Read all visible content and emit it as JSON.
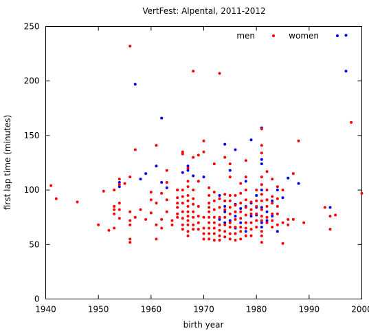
{
  "chart_data": {
    "type": "scatter",
    "title": "VertFest: Alpental, 2011-2012",
    "xlabel": "birth year",
    "ylabel": "first lap time (minutes)",
    "xlim": [
      1940,
      2000
    ],
    "ylim": [
      0,
      250
    ],
    "xticks": [
      1940,
      1950,
      1960,
      1970,
      1980,
      1990,
      2000
    ],
    "yticks": [
      0,
      50,
      100,
      150,
      200,
      250
    ],
    "grid": false,
    "legend_position": "top-right",
    "series": [
      {
        "name": "men",
        "color": "#0000ff",
        "points": [
          [
            1954,
            103
          ],
          [
            1954,
            107
          ],
          [
            1957,
            197
          ],
          [
            1958,
            110
          ],
          [
            1959,
            115
          ],
          [
            1961,
            122
          ],
          [
            1962,
            166
          ],
          [
            1962,
            107
          ],
          [
            1963,
            102
          ],
          [
            1965,
            100
          ],
          [
            1966,
            116
          ],
          [
            1967,
            122
          ],
          [
            1967,
            118
          ],
          [
            1968,
            113
          ],
          [
            1969,
            108
          ],
          [
            1970,
            112
          ],
          [
            1973,
            95
          ],
          [
            1973,
            92
          ],
          [
            1973,
            73
          ],
          [
            1974,
            142
          ],
          [
            1974,
            90
          ],
          [
            1974,
            85
          ],
          [
            1974,
            80
          ],
          [
            1974,
            70
          ],
          [
            1975,
            118
          ],
          [
            1975,
            72
          ],
          [
            1976,
            137
          ],
          [
            1976,
            87
          ],
          [
            1976,
            80
          ],
          [
            1976,
            76
          ],
          [
            1976,
            65
          ],
          [
            1976,
            60
          ],
          [
            1977,
            83
          ],
          [
            1977,
            70
          ],
          [
            1978,
            108
          ],
          [
            1978,
            85
          ],
          [
            1978,
            70
          ],
          [
            1978,
            62
          ],
          [
            1979,
            146
          ],
          [
            1979,
            88
          ],
          [
            1979,
            76
          ],
          [
            1980,
            95
          ],
          [
            1980,
            84
          ],
          [
            1980,
            77
          ],
          [
            1981,
            157
          ],
          [
            1981,
            128
          ],
          [
            1981,
            124
          ],
          [
            1981,
            100
          ],
          [
            1981,
            84
          ],
          [
            1981,
            70
          ],
          [
            1981,
            66
          ],
          [
            1982,
            91
          ],
          [
            1982,
            80
          ],
          [
            1982,
            72
          ],
          [
            1983,
            90
          ],
          [
            1983,
            76
          ],
          [
            1984,
            100
          ],
          [
            1984,
            62
          ],
          [
            1985,
            93
          ],
          [
            1986,
            111
          ],
          [
            1988,
            106
          ],
          [
            1994,
            84
          ],
          [
            1997,
            209
          ],
          [
            1997,
            242
          ]
        ]
      },
      {
        "name": "women",
        "color": "#ff0000",
        "points": [
          [
            1941,
            104
          ],
          [
            1942,
            92
          ],
          [
            1946,
            89
          ],
          [
            1950,
            68
          ],
          [
            1951,
            99
          ],
          [
            1952,
            63
          ],
          [
            1953,
            65
          ],
          [
            1953,
            78
          ],
          [
            1953,
            82
          ],
          [
            1953,
            85
          ],
          [
            1953,
            100
          ],
          [
            1954,
            110
          ],
          [
            1954,
            105
          ],
          [
            1954,
            88
          ],
          [
            1954,
            82
          ],
          [
            1954,
            74
          ],
          [
            1955,
            106
          ],
          [
            1956,
            232
          ],
          [
            1956,
            112
          ],
          [
            1956,
            80
          ],
          [
            1956,
            72
          ],
          [
            1956,
            68
          ],
          [
            1956,
            55
          ],
          [
            1956,
            52
          ],
          [
            1957,
            137
          ],
          [
            1957,
            75
          ],
          [
            1958,
            82
          ],
          [
            1959,
            73
          ],
          [
            1960,
            98
          ],
          [
            1960,
            91
          ],
          [
            1960,
            79
          ],
          [
            1961,
            141
          ],
          [
            1961,
            88
          ],
          [
            1961,
            68
          ],
          [
            1961,
            55
          ],
          [
            1962,
            97
          ],
          [
            1962,
            73
          ],
          [
            1962,
            65
          ],
          [
            1963,
            118
          ],
          [
            1963,
            107
          ],
          [
            1963,
            91
          ],
          [
            1963,
            80
          ],
          [
            1964,
            72
          ],
          [
            1964,
            68
          ],
          [
            1965,
            100
          ],
          [
            1965,
            93
          ],
          [
            1965,
            88
          ],
          [
            1965,
            84
          ],
          [
            1965,
            78
          ],
          [
            1965,
            75
          ],
          [
            1966,
            135
          ],
          [
            1966,
            133
          ],
          [
            1966,
            100
          ],
          [
            1966,
            94
          ],
          [
            1966,
            88
          ],
          [
            1966,
            80
          ],
          [
            1966,
            74
          ],
          [
            1966,
            68
          ],
          [
            1966,
            64
          ],
          [
            1967,
            120
          ],
          [
            1967,
            108
          ],
          [
            1967,
            103
          ],
          [
            1967,
            95
          ],
          [
            1967,
            90
          ],
          [
            1967,
            85
          ],
          [
            1967,
            80
          ],
          [
            1967,
            76
          ],
          [
            1967,
            72
          ],
          [
            1967,
            68
          ],
          [
            1967,
            62
          ],
          [
            1967,
            58
          ],
          [
            1968,
            209
          ],
          [
            1968,
            130
          ],
          [
            1968,
            100
          ],
          [
            1968,
            92
          ],
          [
            1968,
            87
          ],
          [
            1968,
            80
          ],
          [
            1968,
            75
          ],
          [
            1968,
            68
          ],
          [
            1968,
            64
          ],
          [
            1969,
            132
          ],
          [
            1969,
            108
          ],
          [
            1969,
            85
          ],
          [
            1969,
            76
          ],
          [
            1969,
            70
          ],
          [
            1969,
            64
          ],
          [
            1970,
            145
          ],
          [
            1970,
            135
          ],
          [
            1970,
            75
          ],
          [
            1970,
            65
          ],
          [
            1970,
            60
          ],
          [
            1970,
            55
          ],
          [
            1971,
            102
          ],
          [
            1971,
            95
          ],
          [
            1971,
            88
          ],
          [
            1971,
            84
          ],
          [
            1971,
            80
          ],
          [
            1971,
            75
          ],
          [
            1971,
            70
          ],
          [
            1971,
            65
          ],
          [
            1971,
            60
          ],
          [
            1971,
            55
          ],
          [
            1972,
            124
          ],
          [
            1972,
            98
          ],
          [
            1972,
            90
          ],
          [
            1972,
            82
          ],
          [
            1972,
            75
          ],
          [
            1972,
            70
          ],
          [
            1972,
            65
          ],
          [
            1972,
            60
          ],
          [
            1972,
            54
          ],
          [
            1973,
            207
          ],
          [
            1973,
            92
          ],
          [
            1973,
            84
          ],
          [
            1973,
            75
          ],
          [
            1973,
            68
          ],
          [
            1973,
            63
          ],
          [
            1973,
            58
          ],
          [
            1973,
            54
          ],
          [
            1974,
            130
          ],
          [
            1974,
            96
          ],
          [
            1974,
            90
          ],
          [
            1974,
            82
          ],
          [
            1974,
            75
          ],
          [
            1974,
            68
          ],
          [
            1974,
            62
          ],
          [
            1974,
            57
          ],
          [
            1975,
            124
          ],
          [
            1975,
            112
          ],
          [
            1975,
            95
          ],
          [
            1975,
            90
          ],
          [
            1975,
            84
          ],
          [
            1975,
            78
          ],
          [
            1975,
            70
          ],
          [
            1975,
            66
          ],
          [
            1975,
            60
          ],
          [
            1975,
            55
          ],
          [
            1976,
            95
          ],
          [
            1976,
            86
          ],
          [
            1976,
            80
          ],
          [
            1976,
            73
          ],
          [
            1976,
            66
          ],
          [
            1976,
            60
          ],
          [
            1976,
            54
          ],
          [
            1977,
            106
          ],
          [
            1977,
            97
          ],
          [
            1977,
            88
          ],
          [
            1977,
            80
          ],
          [
            1977,
            74
          ],
          [
            1977,
            66
          ],
          [
            1977,
            62
          ],
          [
            1977,
            55
          ],
          [
            1978,
            127
          ],
          [
            1978,
            112
          ],
          [
            1978,
            100
          ],
          [
            1978,
            91
          ],
          [
            1978,
            84
          ],
          [
            1978,
            77
          ],
          [
            1978,
            70
          ],
          [
            1978,
            65
          ],
          [
            1978,
            58
          ],
          [
            1979,
            89
          ],
          [
            1979,
            82
          ],
          [
            1979,
            78
          ],
          [
            1979,
            70
          ],
          [
            1979,
            64
          ],
          [
            1979,
            58
          ],
          [
            1980,
            100
          ],
          [
            1980,
            90
          ],
          [
            1980,
            85
          ],
          [
            1980,
            78
          ],
          [
            1980,
            72
          ],
          [
            1980,
            66
          ],
          [
            1981,
            156
          ],
          [
            1981,
            141
          ],
          [
            1981,
            134
          ],
          [
            1981,
            112
          ],
          [
            1981,
            105
          ],
          [
            1981,
            96
          ],
          [
            1981,
            90
          ],
          [
            1981,
            82
          ],
          [
            1981,
            76
          ],
          [
            1981,
            72
          ],
          [
            1981,
            62
          ],
          [
            1981,
            58
          ],
          [
            1981,
            52
          ],
          [
            1982,
            117
          ],
          [
            1982,
            100
          ],
          [
            1982,
            91
          ],
          [
            1982,
            85
          ],
          [
            1982,
            75
          ],
          [
            1982,
            70
          ],
          [
            1983,
            110
          ],
          [
            1983,
            94
          ],
          [
            1983,
            88
          ],
          [
            1983,
            78
          ],
          [
            1983,
            72
          ],
          [
            1983,
            66
          ],
          [
            1984,
            103
          ],
          [
            1984,
            92
          ],
          [
            1984,
            85
          ],
          [
            1984,
            78
          ],
          [
            1984,
            68
          ],
          [
            1985,
            100
          ],
          [
            1985,
            70
          ],
          [
            1985,
            51
          ],
          [
            1986,
            73
          ],
          [
            1986,
            68
          ],
          [
            1987,
            115
          ],
          [
            1987,
            73
          ],
          [
            1988,
            145
          ],
          [
            1989,
            70
          ],
          [
            1993,
            84
          ],
          [
            1994,
            76
          ],
          [
            1994,
            64
          ],
          [
            1995,
            77
          ],
          [
            1998,
            162
          ],
          [
            2000,
            97
          ]
        ]
      }
    ]
  }
}
